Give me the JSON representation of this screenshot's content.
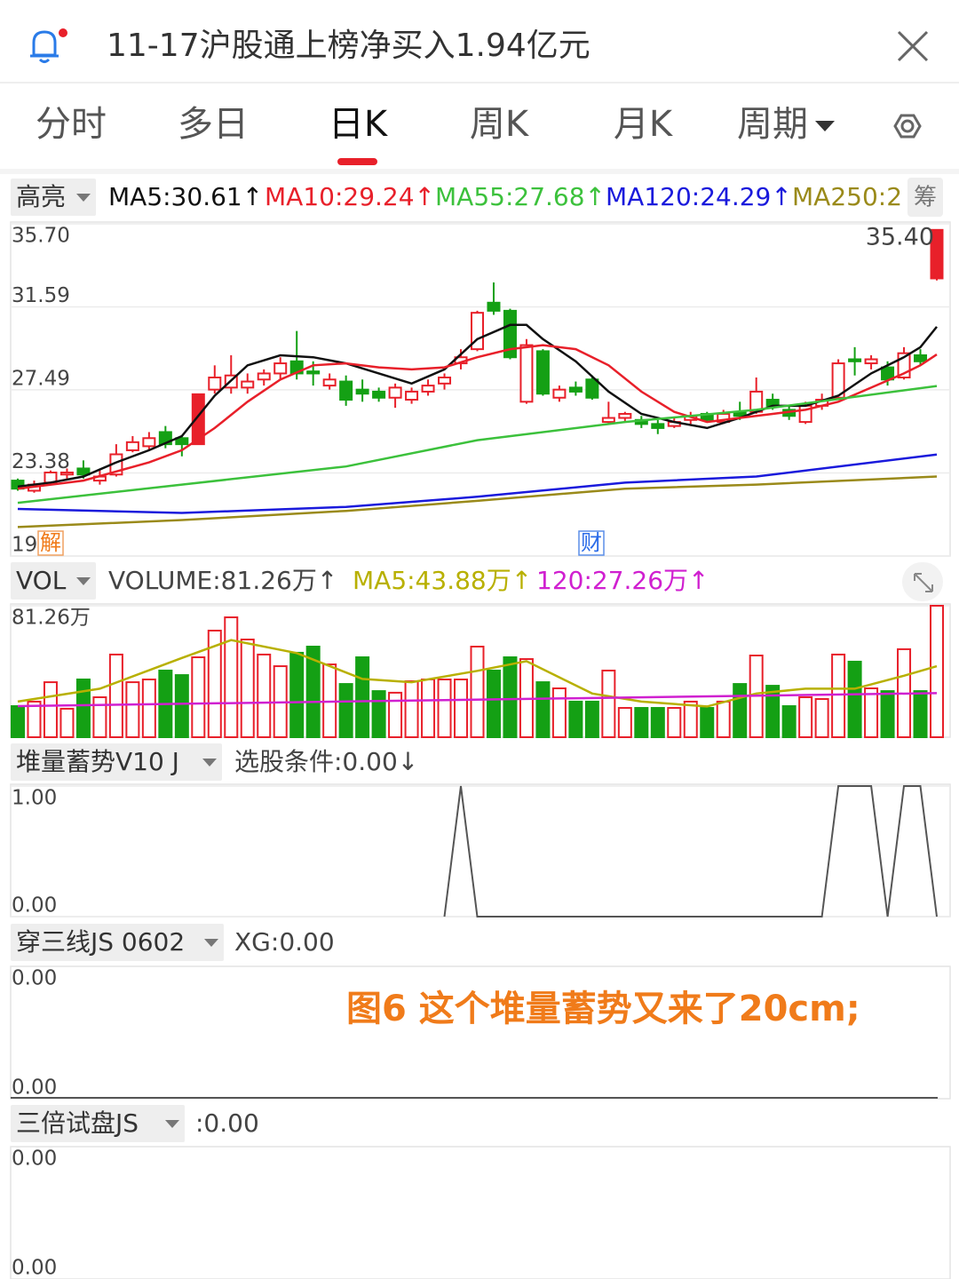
{
  "header": {
    "title": "11-17沪股通上榜净买入1.94亿元"
  },
  "tabs": [
    "分时",
    "多日",
    "日K",
    "周K",
    "月K",
    "周期"
  ],
  "charts": [
    {
      "type": "candlestick",
      "label": "高亮",
      "side_label": "筹",
      "last_label": "35.40",
      "markers": [
        "解",
        "财"
      ],
      "up_color": "#e8202a",
      "down_color": "#14a014",
      "ylim": [
        19.27,
        35.7
      ],
      "yticks": [
        {
          "value": 35.7,
          "label": "35.70"
        },
        {
          "value": 31.59,
          "label": "31.59"
        },
        {
          "value": 27.49,
          "label": "27.49"
        },
        {
          "value": 23.38,
          "label": "23.38"
        },
        {
          "value": 19.27,
          "label": "19"
        }
      ],
      "candles": [
        {
          "open": 23.0,
          "close": 22.6,
          "high": 23.1,
          "low": 22.5
        },
        {
          "open": 22.5,
          "close": 22.8,
          "high": 23.0,
          "low": 22.4
        },
        {
          "open": 22.9,
          "close": 23.4,
          "high": 23.5,
          "low": 22.8
        },
        {
          "open": 23.3,
          "close": 23.4,
          "high": 23.6,
          "low": 23.1
        },
        {
          "open": 23.6,
          "close": 23.3,
          "high": 24.0,
          "low": 23.1
        },
        {
          "open": 23.0,
          "close": 23.2,
          "high": 23.5,
          "low": 22.8
        },
        {
          "open": 23.3,
          "close": 24.3,
          "high": 24.8,
          "low": 23.2
        },
        {
          "open": 24.5,
          "close": 24.9,
          "high": 25.2,
          "low": 24.4
        },
        {
          "open": 24.7,
          "close": 25.1,
          "high": 25.4,
          "low": 24.5
        },
        {
          "open": 25.4,
          "close": 24.8,
          "high": 25.7,
          "low": 24.6
        },
        {
          "open": 25.1,
          "close": 24.8,
          "high": 25.2,
          "low": 24.2
        },
        {
          "open": 24.8,
          "close": 27.27,
          "high": 27.27,
          "low": 24.8
        },
        {
          "open": 27.5,
          "close": 28.1,
          "high": 28.7,
          "low": 27.3
        },
        {
          "open": 27.6,
          "close": 28.2,
          "high": 29.2,
          "low": 27.3
        },
        {
          "open": 27.6,
          "close": 27.9,
          "high": 28.3,
          "low": 27.3
        },
        {
          "open": 28.0,
          "close": 28.3,
          "high": 28.5,
          "low": 27.7
        },
        {
          "open": 28.3,
          "close": 28.8,
          "high": 29.1,
          "low": 28.0
        },
        {
          "open": 28.9,
          "close": 28.3,
          "high": 30.4,
          "low": 28.0
        },
        {
          "open": 28.4,
          "close": 28.3,
          "high": 28.9,
          "low": 27.7
        },
        {
          "open": 27.7,
          "close": 28.0,
          "high": 28.3,
          "low": 27.5
        },
        {
          "open": 27.9,
          "close": 27.0,
          "high": 28.2,
          "low": 26.7
        },
        {
          "open": 27.5,
          "close": 27.3,
          "high": 28.0,
          "low": 26.9
        },
        {
          "open": 27.4,
          "close": 27.1,
          "high": 27.6,
          "low": 26.9
        },
        {
          "open": 27.1,
          "close": 27.6,
          "high": 27.8,
          "low": 26.6
        },
        {
          "open": 27.0,
          "close": 27.4,
          "high": 27.6,
          "low": 26.8
        },
        {
          "open": 27.4,
          "close": 27.7,
          "high": 28.0,
          "low": 27.2
        },
        {
          "open": 27.8,
          "close": 28.1,
          "high": 28.3,
          "low": 27.5
        },
        {
          "open": 28.8,
          "close": 29.1,
          "high": 29.5,
          "low": 28.5
        },
        {
          "open": 29.5,
          "close": 31.3,
          "high": 31.4,
          "low": 29.4
        },
        {
          "open": 31.8,
          "close": 31.4,
          "high": 32.8,
          "low": 31.2
        },
        {
          "open": 31.4,
          "close": 29.1,
          "high": 31.5,
          "low": 29.0
        },
        {
          "open": 26.9,
          "close": 29.7,
          "high": 30.0,
          "low": 26.8
        },
        {
          "open": 29.4,
          "close": 27.3,
          "high": 29.5,
          "low": 27.2
        },
        {
          "open": 27.1,
          "close": 27.5,
          "high": 27.7,
          "low": 26.9
        },
        {
          "open": 27.6,
          "close": 27.4,
          "high": 27.9,
          "low": 27.2
        },
        {
          "open": 28.0,
          "close": 27.1,
          "high": 28.2,
          "low": 27.0
        },
        {
          "open": 25.9,
          "close": 26.1,
          "high": 26.9,
          "low": 25.8
        },
        {
          "open": 26.1,
          "close": 26.3,
          "high": 26.4,
          "low": 25.9
        },
        {
          "open": 26.0,
          "close": 25.8,
          "high": 26.2,
          "low": 25.6
        },
        {
          "open": 25.8,
          "close": 25.6,
          "high": 26.0,
          "low": 25.3
        },
        {
          "open": 25.7,
          "close": 25.9,
          "high": 26.1,
          "low": 25.6
        },
        {
          "open": 26.0,
          "close": 26.2,
          "high": 26.4,
          "low": 25.8
        },
        {
          "open": 26.3,
          "close": 26.0,
          "high": 26.4,
          "low": 25.9
        },
        {
          "open": 25.9,
          "close": 26.3,
          "high": 26.5,
          "low": 25.8
        },
        {
          "open": 26.4,
          "close": 26.2,
          "high": 26.9,
          "low": 26.0
        },
        {
          "open": 26.4,
          "close": 27.4,
          "high": 28.1,
          "low": 26.3
        },
        {
          "open": 27.0,
          "close": 26.7,
          "high": 27.3,
          "low": 26.5
        },
        {
          "open": 26.5,
          "close": 26.2,
          "high": 26.7,
          "low": 26.0
        },
        {
          "open": 25.9,
          "close": 26.7,
          "high": 26.9,
          "low": 25.8
        },
        {
          "open": 26.7,
          "close": 27.0,
          "high": 27.3,
          "low": 26.5
        },
        {
          "open": 27.1,
          "close": 28.8,
          "high": 29.0,
          "low": 27.0
        },
        {
          "open": 29.0,
          "close": 28.9,
          "high": 29.6,
          "low": 28.2
        },
        {
          "open": 28.8,
          "close": 29.0,
          "high": 29.2,
          "low": 28.5
        },
        {
          "open": 28.6,
          "close": 28.0,
          "high": 28.9,
          "low": 27.7
        },
        {
          "open": 28.1,
          "close": 29.3,
          "high": 29.6,
          "low": 28.0
        },
        {
          "open": 29.2,
          "close": 28.9,
          "high": 29.5,
          "low": 28.7
        },
        {
          "open": 33.0,
          "close": 35.4,
          "high": 35.4,
          "low": 32.9
        }
      ],
      "lines": [
        {
          "label": "MA5:30.61↑",
          "color": "#111111",
          "x": [
            0,
            2,
            4,
            6,
            8,
            10,
            12,
            14,
            16,
            18,
            20,
            22,
            24,
            26,
            28,
            30,
            31,
            32,
            34,
            36,
            38,
            40,
            42,
            44,
            46,
            48,
            50,
            52,
            54,
            55,
            56
          ],
          "values": [
            22.7,
            22.9,
            23.2,
            23.9,
            24.5,
            25.2,
            27.2,
            28.7,
            29.2,
            29.1,
            28.8,
            28.3,
            27.8,
            28.5,
            30.0,
            30.7,
            30.7,
            30.0,
            28.9,
            27.4,
            26.3,
            25.9,
            25.6,
            26.1,
            26.7,
            26.7,
            27.2,
            28.3,
            29.1,
            29.6,
            30.61
          ]
        },
        {
          "label": "MA10:29.24↑",
          "color": "#e8202a",
          "x": [
            0,
            4,
            8,
            10,
            12,
            14,
            16,
            18,
            20,
            22,
            24,
            26,
            28,
            30,
            32,
            34,
            36,
            38,
            40,
            42,
            44,
            46,
            48,
            50,
            52,
            54,
            55,
            56
          ],
          "values": [
            22.6,
            23.0,
            23.9,
            24.5,
            25.6,
            26.9,
            28.0,
            28.7,
            28.8,
            28.6,
            28.5,
            28.6,
            29.1,
            29.5,
            29.7,
            29.5,
            28.7,
            27.4,
            26.4,
            25.9,
            26.1,
            26.3,
            26.5,
            26.9,
            27.6,
            28.3,
            28.7,
            29.24
          ]
        },
        {
          "label": "MA55:27.68↑",
          "color": "#3cc13c",
          "x": [
            0,
            10,
            20,
            28,
            37,
            45,
            56
          ],
          "values": [
            21.9,
            22.8,
            23.7,
            25.0,
            25.9,
            26.5,
            27.68
          ]
        },
        {
          "label": "MA120:24.29↑",
          "color": "#1a1adc",
          "x": [
            0,
            10,
            20,
            28,
            37,
            45,
            56
          ],
          "values": [
            21.6,
            21.4,
            21.7,
            22.2,
            22.9,
            23.2,
            24.29
          ]
        },
        {
          "label": "MA250:2",
          "color": "#9a8a1a",
          "x": [
            0,
            10,
            20,
            28,
            37,
            45,
            56
          ],
          "values": [
            20.7,
            21.05,
            21.5,
            22.0,
            22.6,
            22.8,
            23.2
          ]
        }
      ]
    },
    {
      "type": "bar",
      "label": "VOL",
      "ylim": [
        0,
        81.26
      ],
      "yticks": [
        {
          "value": 81.26,
          "label": "81.26万"
        }
      ],
      "values": [
        19.2,
        22.0,
        34.0,
        17.6,
        35.7,
        24.7,
        51.1,
        34.0,
        35.7,
        41.2,
        38.4,
        49.4,
        65.9,
        74.1,
        60.4,
        51.1,
        43.9,
        52.2,
        56.0,
        45.0,
        32.9,
        49.4,
        28.5,
        27.5,
        34.6,
        35.7,
        35.7,
        35.7,
        56.0,
        41.2,
        49.4,
        48.3,
        34.0,
        30.2,
        22.0,
        22.0,
        41.2,
        18.1,
        18.1,
        18.1,
        18.1,
        22.0,
        18.1,
        22.0,
        32.9,
        50.5,
        31.8,
        19.2,
        24.7,
        23.6,
        51.1,
        46.7,
        30.2,
        28.5,
        54.4,
        28.5,
        81.26
      ],
      "legend": "VOLUME:81.26万↑",
      "lines": [
        {
          "label": "MA5:43.88万↑",
          "color": "#b8b000",
          "x": [
            0,
            5,
            10,
            13,
            17,
            21,
            24,
            28,
            31,
            35,
            38,
            42,
            45,
            48,
            51,
            54,
            56
          ],
          "values": [
            22,
            30,
            49,
            60,
            52,
            36,
            34,
            41,
            47,
            27,
            22,
            19,
            27,
            30,
            30,
            38,
            43.88
          ]
        },
        {
          "label": "120:27.26万↑",
          "color": "#d020d0",
          "x": [
            0,
            56
          ],
          "values": [
            19.2,
            27.26
          ]
        }
      ]
    },
    {
      "type": "line",
      "label": "堆量蓄势V10 J",
      "legend": "选股条件:0.00↓",
      "color": "#555555",
      "ylim": [
        0,
        1
      ],
      "yticks": [
        {
          "value": 1,
          "label": "1.00"
        },
        {
          "value": 0,
          "label": "0.00"
        }
      ],
      "values": [
        null,
        null,
        null,
        null,
        null,
        null,
        null,
        null,
        null,
        null,
        null,
        null,
        null,
        null,
        null,
        null,
        null,
        null,
        null,
        null,
        null,
        null,
        null,
        null,
        null,
        null,
        0,
        1,
        0,
        0,
        0,
        0,
        0,
        0,
        0,
        0,
        0,
        0,
        0,
        0,
        0,
        0,
        0,
        0,
        0,
        0,
        0,
        0,
        0,
        0,
        1,
        1,
        1,
        0,
        1,
        1,
        0
      ]
    },
    {
      "type": "empty",
      "label": "穿三线JS 0602",
      "legend": "XG:0.00",
      "axis_labels": [
        "0.00",
        "0.00"
      ],
      "annotation": "图6 这个堆量蓄势又来了20cm;"
    },
    {
      "type": "empty",
      "label": "三倍试盘JS",
      "legend": ":0.00",
      "axis_labels": [
        "0.00",
        "0.00"
      ]
    }
  ]
}
